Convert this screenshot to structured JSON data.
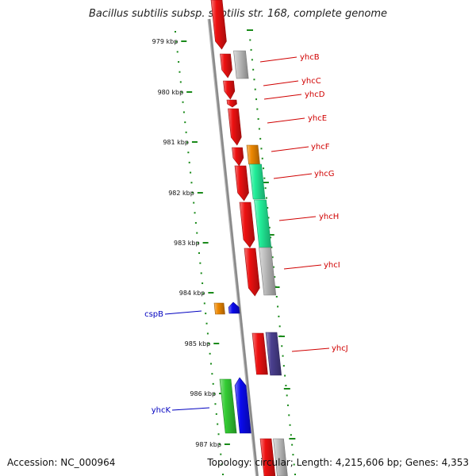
{
  "title": "Bacillus subtilis subsp. subtilis str. 168, complete genome",
  "footer": {
    "accession": "Accession: NC_000964",
    "summary": "Topology: circular; Length: 4,215,606 bp; Genes: 4,353"
  },
  "colors": {
    "tick": "#1a8a1a",
    "forward_label": "#d00000",
    "reverse_label": "#0000c0",
    "backbone": "#8a8a8a"
  },
  "ticks": [
    "979 kbp",
    "980 kbp",
    "981 kbp",
    "982 kbp",
    "983 kbp",
    "984 kbp",
    "985 kbp",
    "986 kbp",
    "987 kbp"
  ],
  "gene_labels": [
    {
      "text": "yhcB",
      "color": "#d00000"
    },
    {
      "text": "yhcC",
      "color": "#d00000"
    },
    {
      "text": "yhcD",
      "color": "#d00000"
    },
    {
      "text": "yhcE",
      "color": "#d00000"
    },
    {
      "text": "yhcF",
      "color": "#d00000"
    },
    {
      "text": "yhcG",
      "color": "#d00000"
    },
    {
      "text": "yhcH",
      "color": "#d00000"
    },
    {
      "text": "yhcI",
      "color": "#d00000"
    },
    {
      "text": "cspB",
      "color": "#0000c0"
    },
    {
      "text": "yhcJ",
      "color": "#d00000"
    },
    {
      "text": "yhcK",
      "color": "#0000c0"
    }
  ],
  "features": [
    {
      "name": "gene-red",
      "color": "#ee1111"
    },
    {
      "name": "gene-grey",
      "color": "#bdbdbd"
    },
    {
      "name": "gene-orange",
      "color": "#ee8800"
    },
    {
      "name": "gene-teal",
      "color": "#22ee99"
    },
    {
      "name": "gene-navy",
      "color": "#4a3f8f"
    },
    {
      "name": "gene-blue",
      "color": "#0a0aee"
    },
    {
      "name": "gene-green",
      "color": "#33cc33"
    }
  ]
}
